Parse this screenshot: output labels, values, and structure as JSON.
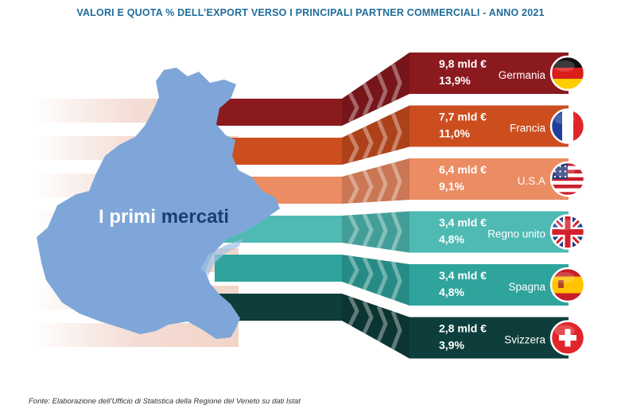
{
  "title": "VALORI E QUOTA % DELL’EXPORT VERSO I PRINCIPALI PARTNER COMMERCIALI - ANNO 2021",
  "headline": {
    "part1": "I primi",
    "part2": "mercati"
  },
  "source": "Fonte: Elaborazione dell’Ufficio di Statistica della Regione del Veneto su dati Istat",
  "chart_data": {
    "type": "bar",
    "title": "VALORI E QUOTA % DELL’EXPORT VERSO I PRINCIPALI PARTNER COMMERCIALI - ANNO 2021",
    "categories": [
      "Germania",
      "Francia",
      "U.S.A",
      "Regno unito",
      "Spagna",
      "Svizzera"
    ],
    "value_labels": [
      "9,8 mld €",
      "7,7 mld €",
      "6,4 mld €",
      "3,4 mld €",
      "3,4 mld €",
      "2,8 mld €"
    ],
    "share_labels": [
      "13,9%",
      "11,0%",
      "9,1%",
      "4,8%",
      "4,8%",
      "3,9%"
    ],
    "series": [
      {
        "name": "mld €",
        "values": [
          9.8,
          7.7,
          6.4,
          3.4,
          3.4,
          2.8
        ]
      },
      {
        "name": "%",
        "values": [
          13.9,
          11.0,
          9.1,
          4.8,
          4.8,
          3.9
        ]
      }
    ],
    "colors": [
      "#8b1a1f",
      "#cc4e1f",
      "#ec8c63",
      "#4fbab4",
      "#2ea49c",
      "#0d3e3b"
    ],
    "flags": [
      "flag-germany-icon",
      "flag-france-icon",
      "flag-usa-icon",
      "flag-uk-icon",
      "flag-spain-icon",
      "flag-switzerland-icon"
    ]
  }
}
